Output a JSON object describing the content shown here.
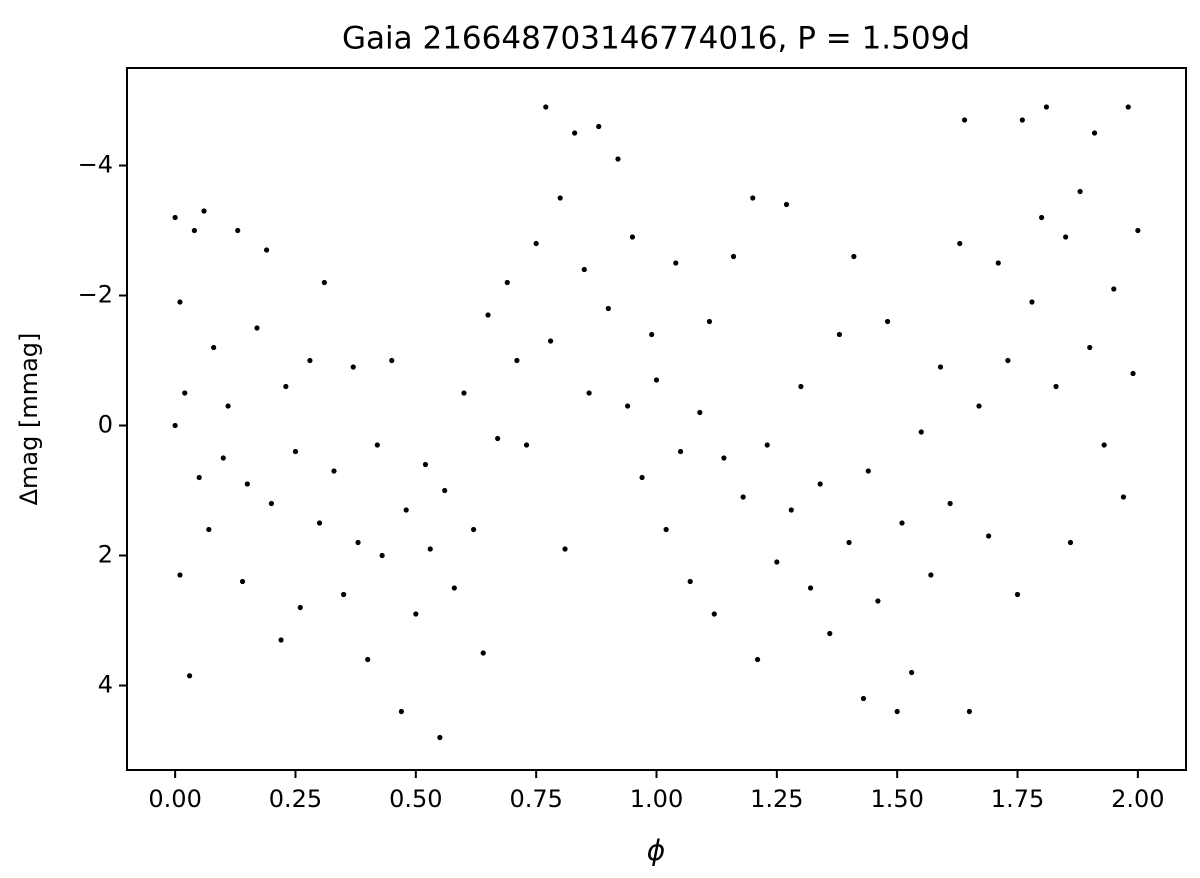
{
  "chart_data": {
    "type": "scatter",
    "title": "Gaia 216648703146774016, P = 1.509d",
    "x_label": "ϕ",
    "y_label": "Δmag [mmag]",
    "color": "#000000",
    "xlim": [
      -0.1,
      2.1
    ],
    "ylim": [
      5.3,
      -5.5
    ],
    "xticks": [
      {
        "value": 0,
        "label": "0.00"
      },
      {
        "value": 0.25,
        "label": "0.25"
      },
      {
        "value": 0.5,
        "label": "0.50"
      },
      {
        "value": 0.75,
        "label": "0.75"
      },
      {
        "value": 1,
        "label": "1.00"
      },
      {
        "value": 1.25,
        "label": "1.25"
      },
      {
        "value": 1.5,
        "label": "1.50"
      },
      {
        "value": 1.75,
        "label": "1.75"
      },
      {
        "value": 2,
        "label": "2.00"
      }
    ],
    "yticks": [
      {
        "value": -4,
        "label": "−4"
      },
      {
        "value": -2,
        "label": "−2"
      },
      0,
      2,
      4
    ],
    "x": [
      0,
      0,
      0.01,
      0.01,
      0.02,
      0.03,
      0.04,
      0.05,
      0.06,
      0.07,
      0.08,
      0.1,
      0.11,
      0.13,
      0.14,
      0.15,
      0.17,
      0.19,
      0.2,
      0.22,
      0.23,
      0.25,
      0.26,
      0.28,
      0.3,
      0.31,
      0.33,
      0.35,
      0.37,
      0.38,
      0.4,
      0.42,
      0.43,
      0.45,
      0.47,
      0.48,
      0.5,
      0.52,
      0.53,
      0.55,
      0.56,
      0.58,
      0.6,
      0.62,
      0.64,
      0.65,
      0.67,
      0.69,
      0.71,
      0.73,
      0.75,
      0.77,
      0.78,
      0.8,
      0.81,
      0.83,
      0.85,
      0.86,
      0.88,
      0.9,
      0.92,
      0.94,
      0.95,
      0.97,
      0.99,
      1,
      1.02,
      1.04,
      1.05,
      1.07,
      1.09,
      1.11,
      1.12,
      1.14,
      1.16,
      1.18,
      1.2,
      1.21,
      1.23,
      1.25,
      1.27,
      1.28,
      1.3,
      1.32,
      1.34,
      1.36,
      1.38,
      1.4,
      1.41,
      1.43,
      1.44,
      1.46,
      1.48,
      1.5,
      1.51,
      1.53,
      1.55,
      1.57,
      1.59,
      1.61,
      1.63,
      1.64,
      1.65,
      1.67,
      1.69,
      1.71,
      1.73,
      1.75,
      1.76,
      1.78,
      1.8,
      1.81,
      1.83,
      1.85,
      1.86,
      1.88,
      1.9,
      1.91,
      1.93,
      1.95,
      1.97,
      1.98,
      1.99,
      2
    ],
    "values": [
      0,
      -3.2,
      -1.9,
      2.3,
      -0.5,
      3.85,
      -3,
      0.8,
      -3.3,
      1.6,
      -1.2,
      0.5,
      -0.3,
      -3,
      2.4,
      0.9,
      -1.5,
      -2.7,
      1.2,
      3.3,
      -0.6,
      0.4,
      2.8,
      -1,
      1.5,
      -2.2,
      0.7,
      2.6,
      -0.9,
      1.8,
      3.6,
      0.3,
      2,
      -1,
      4.4,
      1.3,
      2.9,
      0.6,
      1.9,
      4.8,
      1,
      2.5,
      -0.5,
      1.6,
      3.5,
      -1.7,
      0.2,
      -2.2,
      -1,
      0.3,
      -2.8,
      -4.9,
      -1.3,
      -3.5,
      1.9,
      -4.5,
      -2.4,
      -0.5,
      -4.6,
      -1.8,
      -4.1,
      -0.3,
      -2.9,
      0.8,
      -1.4,
      -0.7,
      1.6,
      -2.5,
      0.4,
      2.4,
      -0.2,
      -1.6,
      2.9,
      0.5,
      -2.6,
      1.1,
      -3.5,
      3.6,
      0.3,
      2.1,
      -3.4,
      1.3,
      -0.6,
      2.5,
      0.9,
      3.2,
      -1.4,
      1.8,
      -2.6,
      4.2,
      0.7,
      2.7,
      -1.6,
      4.4,
      1.5,
      3.8,
      0.1,
      2.3,
      -0.9,
      1.2,
      -2.8,
      -4.7,
      4.4,
      -0.3,
      1.7,
      -2.5,
      -1,
      2.6,
      -4.7,
      -1.9,
      -3.2,
      -4.9,
      -0.6,
      -2.9,
      1.8,
      -3.6,
      -1.2,
      -4.5,
      0.3,
      -2.1,
      1.1,
      -4.9,
      -0.8,
      -3
    ]
  }
}
